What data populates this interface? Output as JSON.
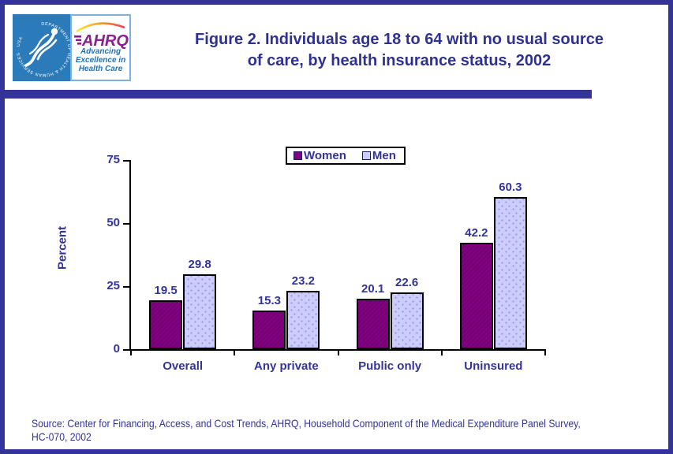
{
  "header": {
    "logo": {
      "hhs_circle_text": "DEPARTMENT OF HEALTH & HUMAN SERVICES · USA",
      "ahrq_acronym": "AHRQ",
      "ahrq_tagline_lines": [
        "Advancing",
        "Excellence in",
        "Health Care"
      ]
    },
    "title_line1": "Figure 2. Individuals age 18 to 64 with no usual source",
    "title_line2": "of care, by health insurance status, 2002"
  },
  "chart_data": {
    "type": "bar",
    "title": "Figure 2. Individuals age 18 to 64 with no usual source of care, by health insurance status, 2002",
    "categories": [
      "Overall",
      "Any private",
      "Public only",
      "Uninsured"
    ],
    "series": [
      {
        "name": "Women",
        "color": "#800080",
        "values": [
          19.5,
          15.3,
          20.1,
          42.2
        ]
      },
      {
        "name": "Men",
        "color": "#ccccff",
        "values": [
          29.8,
          23.2,
          22.6,
          60.3
        ]
      }
    ],
    "xlabel": "",
    "ylabel": "Percent",
    "ylim": [
      0,
      75
    ],
    "yticks": [
      0,
      25,
      50,
      75
    ],
    "grid": false,
    "legend_position": "top-center",
    "value_labels": true
  },
  "footer": {
    "source_line1": "Source: Center for Financing, Access, and Cost Trends, AHRQ, Household Component of the Medical Expenditure Panel Survey,",
    "source_line2": "HC-070, 2002"
  },
  "colors": {
    "accent_navy": "#333399",
    "title_navy": "#2e3192",
    "women_bar": "#800080",
    "men_bar": "#ccccff",
    "men_bar_dots": "#9a9ad8",
    "hhs_blue": "#2b7ab9",
    "ahrq_purple": "#8b1f8b",
    "tagline_blue": "#1f72b8",
    "axis_black": "#000000"
  }
}
